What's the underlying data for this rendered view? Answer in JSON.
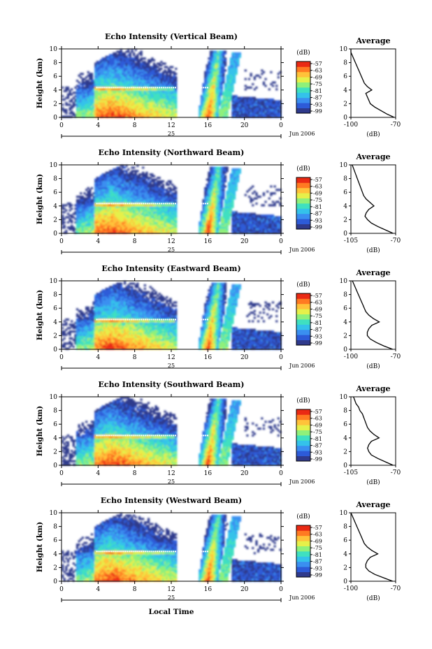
{
  "chart_data": {
    "type": "heatmap",
    "shared": {
      "xlabel": "Local Time",
      "x_ticks": [
        "0",
        "4",
        "8",
        "12",
        "16",
        "20",
        "0"
      ],
      "xlim_hours": [
        0,
        24
      ],
      "day_label": "25",
      "month_label": "Jun 2006",
      "ylabel": "Height (km)",
      "y_ticks": [
        "0",
        "2",
        "4",
        "6",
        "8",
        "10"
      ],
      "ylim_km": [
        0,
        10
      ],
      "colorbar_unit": "(dB)",
      "colorbar_ticks": [
        "-57",
        "-63",
        "-69",
        "-75",
        "-81",
        "-87",
        "-93",
        "-99"
      ],
      "colors": [
        "#2f3a8c",
        "#2d5bd8",
        "#3a8ff0",
        "#34c2ea",
        "#3fe0c0",
        "#8ff07a",
        "#e6f04a",
        "#ffc23a",
        "#ff7a22",
        "#ea2a14"
      ],
      "average_title": "Average",
      "average_xlabel": "(dB)",
      "average_y_ticks": [
        "0",
        "2",
        "4",
        "6",
        "8",
        "10"
      ]
    },
    "panels": [
      {
        "title": "Echo Intensity (Vertical Beam)",
        "average_x_ticks": [
          "-100",
          "-70"
        ],
        "average_xlim": [
          -100,
          -70
        ],
        "average_profile": {
          "height_km": [
            0,
            0.5,
            1,
            1.5,
            2,
            2.5,
            3,
            3.5,
            4,
            4.5,
            5,
            5.5,
            6,
            6.5,
            7,
            7.5,
            8,
            8.5,
            9,
            9.5,
            10
          ],
          "db": [
            -71,
            -76,
            -80,
            -84,
            -87,
            -88,
            -89,
            -90,
            -86,
            -89,
            -91,
            -92,
            -93,
            -94,
            -95,
            -96,
            -97,
            -98,
            -99,
            -100,
            -100
          ]
        }
      },
      {
        "title": "Echo Intensity (Northward Beam)",
        "average_x_ticks": [
          "-105",
          "-70"
        ],
        "average_xlim": [
          -105,
          -70
        ],
        "average_profile": {
          "height_km": [
            0,
            0.5,
            1,
            1.5,
            2,
            2.5,
            3,
            3.5,
            4,
            4.5,
            5,
            5.5,
            6,
            6.5,
            7,
            7.5,
            8,
            8.5,
            9,
            9.5,
            10
          ],
          "db": [
            -72,
            -78,
            -84,
            -89,
            -92,
            -94,
            -93,
            -91,
            -87,
            -90,
            -93,
            -95,
            -96,
            -97,
            -98,
            -99,
            -100,
            -101,
            -102,
            -103,
            -104
          ]
        }
      },
      {
        "title": "Echo Intensity (Eastward Beam)",
        "average_x_ticks": [
          "-100",
          "-70"
        ],
        "average_xlim": [
          -100,
          -70
        ],
        "average_profile": {
          "height_km": [
            0,
            0.5,
            1,
            1.5,
            2,
            2.5,
            3,
            3.5,
            4,
            4.5,
            5,
            5.5,
            6,
            6.5,
            7,
            7.5,
            8,
            8.5,
            9,
            9.5,
            10
          ],
          "db": [
            -72,
            -78,
            -83,
            -87,
            -89,
            -89,
            -88,
            -86,
            -81,
            -85,
            -88,
            -90,
            -91,
            -92,
            -93,
            -94,
            -95,
            -96,
            -97,
            -98,
            -99
          ]
        }
      },
      {
        "title": "Echo Intensity (Southward Beam)",
        "average_x_ticks": [
          "-105",
          "-70"
        ],
        "average_xlim": [
          -105,
          -70
        ],
        "average_profile": {
          "height_km": [
            0,
            0.5,
            1,
            1.5,
            2,
            2.5,
            3,
            3.5,
            4,
            4.5,
            5,
            5.5,
            6,
            6.5,
            7,
            7.5,
            8,
            8.5,
            9,
            9.5,
            10
          ],
          "db": [
            -72,
            -78,
            -84,
            -89,
            -91,
            -92,
            -91,
            -89,
            -83,
            -87,
            -90,
            -92,
            -93,
            -94,
            -95,
            -96,
            -98,
            -99,
            -101,
            -102,
            -103
          ]
        }
      },
      {
        "title": "Echo Intensity (Westward Beam)",
        "average_x_ticks": [
          "-100",
          "-70"
        ],
        "average_xlim": [
          -100,
          -70
        ],
        "average_profile": {
          "height_km": [
            0,
            0.5,
            1,
            1.5,
            2,
            2.5,
            3,
            3.5,
            4,
            4.5,
            5,
            5.5,
            6,
            6.5,
            7,
            7.5,
            8,
            8.5,
            9,
            9.5,
            10
          ],
          "db": [
            -72,
            -78,
            -84,
            -88,
            -90,
            -90,
            -89,
            -87,
            -82,
            -86,
            -89,
            -91,
            -92,
            -93,
            -94,
            -95,
            -96,
            -97,
            -98,
            -99,
            -100
          ]
        }
      }
    ]
  }
}
